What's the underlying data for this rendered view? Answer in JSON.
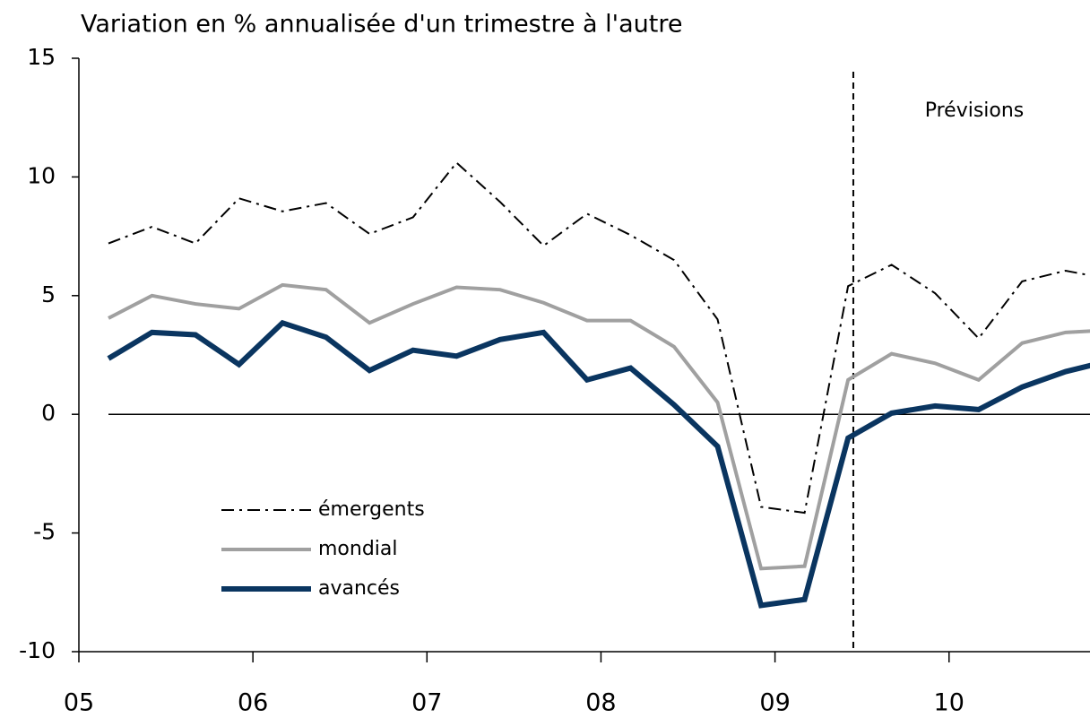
{
  "chart_data": {
    "type": "line",
    "title": "Variation en % annualisée d'un trimestre à l'autre",
    "x": [
      2005.17,
      2005.42,
      2005.67,
      2005.92,
      2006.17,
      2006.42,
      2006.67,
      2006.92,
      2007.17,
      2007.42,
      2007.67,
      2007.92,
      2008.17,
      2008.42,
      2008.67,
      2008.92,
      2009.17,
      2009.42,
      2009.67,
      2009.92,
      2010.17,
      2010.42,
      2010.67,
      2010.92
    ],
    "series": [
      {
        "name": "émergents",
        "color": "#000000",
        "line_style": "dashdot",
        "values": [
          7.2,
          7.9,
          7.2,
          9.1,
          8.55,
          8.9,
          7.6,
          8.3,
          10.6,
          8.95,
          7.1,
          8.45,
          7.55,
          6.5,
          4.0,
          -3.9,
          -4.15,
          5.4,
          6.3,
          5.1,
          3.2,
          5.6,
          6.05,
          5.7
        ]
      },
      {
        "name": "mondial",
        "color": "#a0a0a0",
        "line_style": "solid",
        "values": [
          4.05,
          5.0,
          4.65,
          4.45,
          5.45,
          5.25,
          3.85,
          4.65,
          5.35,
          5.25,
          4.7,
          3.95,
          3.95,
          2.85,
          0.5,
          -6.5,
          -6.4,
          1.45,
          2.55,
          2.15,
          1.45,
          3.0,
          3.45,
          3.55
        ]
      },
      {
        "name": "avancés",
        "color": "#0a3560",
        "line_style": "solid",
        "values": [
          2.35,
          3.45,
          3.35,
          2.1,
          3.85,
          3.25,
          1.85,
          2.7,
          2.45,
          3.15,
          3.45,
          1.45,
          1.95,
          0.4,
          -1.35,
          -8.05,
          -7.8,
          -1.0,
          0.05,
          0.35,
          0.2,
          1.15,
          1.8,
          2.25
        ]
      }
    ],
    "xlim": [
      2005,
      2010.81
    ],
    "xticks": [
      {
        "value": 2005,
        "label": "05"
      },
      {
        "value": 2006,
        "label": "06"
      },
      {
        "value": 2007,
        "label": "07"
      },
      {
        "value": 2008,
        "label": "08"
      },
      {
        "value": 2009,
        "label": "09"
      },
      {
        "value": 2010,
        "label": "10"
      }
    ],
    "ylim": [
      -10,
      15
    ],
    "yticks": [
      -10,
      -5,
      0,
      5,
      10,
      15
    ],
    "forecast_line": {
      "x": 2009.45,
      "label": "Prévisions"
    },
    "legend": "lower left"
  }
}
